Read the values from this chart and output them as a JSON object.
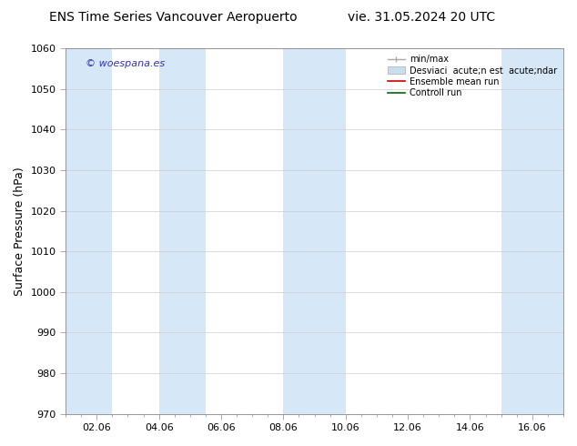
{
  "title_left": "ENS Time Series Vancouver Aeropuerto",
  "title_right": "vie. 31.05.2024 20 UTC",
  "ylabel": "Surface Pressure (hPa)",
  "ylim": [
    970,
    1060
  ],
  "yticks": [
    970,
    980,
    990,
    1000,
    1010,
    1020,
    1030,
    1040,
    1050,
    1060
  ],
  "xtick_labels": [
    "02.06",
    "04.06",
    "06.06",
    "08.06",
    "10.06",
    "12.06",
    "14.06",
    "16.06"
  ],
  "xtick_positions": [
    1,
    3,
    5,
    7,
    9,
    11,
    13,
    15
  ],
  "xlim": [
    0,
    16
  ],
  "watermark": "© woespana.es",
  "watermark_color": "#3333bb",
  "bg_color": "#ffffff",
  "plot_bg_color": "#ffffff",
  "shaded_bands": [
    {
      "x_start": 0.0,
      "x_end": 1.5,
      "color": "#d6e8f7"
    },
    {
      "x_start": 3.0,
      "x_end": 4.5,
      "color": "#d6e8f7"
    },
    {
      "x_start": 7.0,
      "x_end": 9.0,
      "color": "#d6e8f7"
    },
    {
      "x_start": 14.0,
      "x_end": 16.0,
      "color": "#d6e8f7"
    }
  ],
  "legend_labels": [
    "min/max",
    "Desviaci  acute;n est  acute;ndar",
    "Ensemble mean run",
    "Controll run"
  ],
  "legend_colors": [
    "#aaaaaa",
    "#c8dff0",
    "#cc0000",
    "#006600"
  ],
  "title_fontsize": 10,
  "tick_fontsize": 8,
  "label_fontsize": 9,
  "legend_fontsize": 7
}
